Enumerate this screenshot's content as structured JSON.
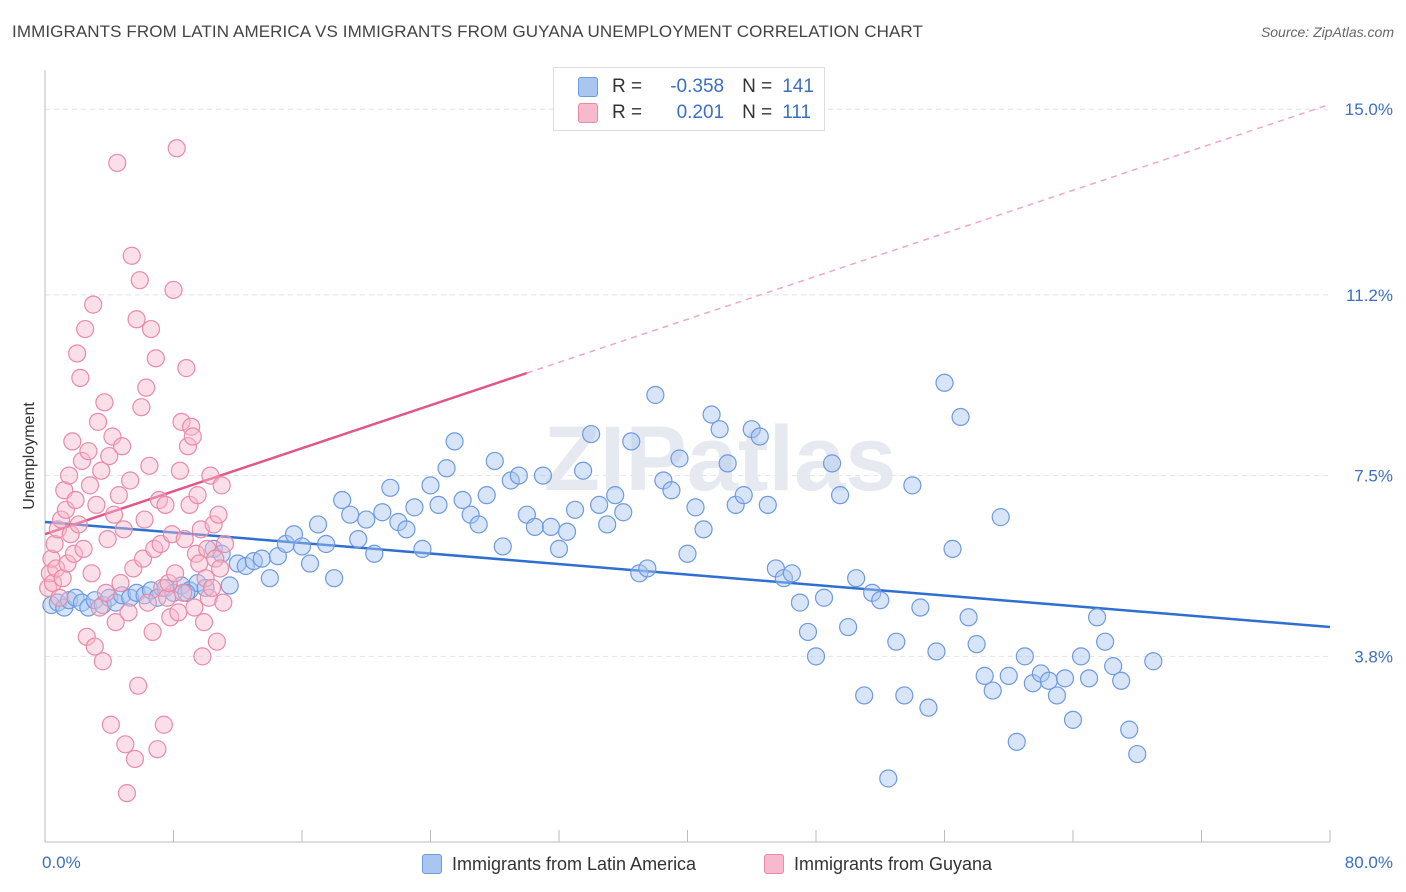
{
  "title": "IMMIGRANTS FROM LATIN AMERICA VS IMMIGRANTS FROM GUYANA UNEMPLOYMENT CORRELATION CHART",
  "source": "Source: ZipAtlas.com",
  "watermark": "ZIPatlas",
  "legend": {
    "rows": [
      {
        "r_label": "R =",
        "r_value": "-0.358",
        "n_label": "N =",
        "n_value": "141",
        "color": "#a9c6f0",
        "border": "#6d9ae0"
      },
      {
        "r_label": "R =",
        "r_value": "0.201",
        "n_label": "N =",
        "n_value": "111",
        "color": "#f7b9cc",
        "border": "#e98aa8"
      }
    ]
  },
  "bottom_legend": {
    "items": [
      {
        "label": "Immigrants from Latin America",
        "color": "#a9c6f0",
        "border": "#6d9ae0"
      },
      {
        "label": "Immigrants from Guyana",
        "color": "#f7b9cc",
        "border": "#e98aa8"
      }
    ]
  },
  "chart_data": {
    "type": "scatter",
    "xlabel": "",
    "ylabel": "Unemployment",
    "xlim": [
      0,
      80
    ],
    "ylim": [
      0,
      15.7
    ],
    "x_tick_labels": [
      "0.0%",
      "80.0%"
    ],
    "y_ticks": [
      3.8,
      7.5,
      11.2,
      15.0
    ],
    "y_tick_labels": [
      "3.8%",
      "7.5%",
      "11.2%",
      "15.0%"
    ],
    "grid": true,
    "legend_position": "top-center",
    "series": [
      {
        "name": "Immigrants from Latin America",
        "color": "#6d9ae0",
        "fill": "#a9c6f0",
        "trend": {
          "x": [
            0,
            80
          ],
          "y": [
            6.55,
            4.4
          ]
        },
        "points": [
          [
            0.4,
            4.85
          ],
          [
            0.8,
            4.9
          ],
          [
            1.2,
            4.8
          ],
          [
            1.5,
            4.95
          ],
          [
            1.9,
            5.0
          ],
          [
            2.3,
            4.9
          ],
          [
            2.7,
            4.8
          ],
          [
            3.1,
            4.95
          ],
          [
            3.6,
            4.85
          ],
          [
            4.0,
            5.0
          ],
          [
            4.4,
            4.9
          ],
          [
            4.8,
            5.05
          ],
          [
            5.3,
            5.0
          ],
          [
            5.7,
            5.1
          ],
          [
            6.2,
            5.05
          ],
          [
            6.6,
            5.15
          ],
          [
            7.0,
            5.0
          ],
          [
            7.5,
            5.2
          ],
          [
            8.0,
            5.1
          ],
          [
            8.5,
            5.25
          ],
          [
            9.0,
            5.15
          ],
          [
            9.5,
            5.3
          ],
          [
            10.0,
            5.2
          ],
          [
            10.5,
            6.0
          ],
          [
            11.0,
            5.9
          ],
          [
            11.5,
            5.25
          ],
          [
            12.0,
            5.7
          ],
          [
            12.5,
            5.65
          ],
          [
            13.0,
            5.75
          ],
          [
            13.5,
            5.8
          ],
          [
            14.0,
            5.4
          ],
          [
            14.5,
            5.85
          ],
          [
            15.0,
            6.1
          ],
          [
            15.5,
            6.3
          ],
          [
            16.0,
            6.05
          ],
          [
            16.5,
            5.7
          ],
          [
            17.0,
            6.5
          ],
          [
            17.5,
            6.1
          ],
          [
            18.0,
            5.4
          ],
          [
            18.5,
            7.0
          ],
          [
            19.0,
            6.7
          ],
          [
            19.5,
            6.2
          ],
          [
            20.0,
            6.6
          ],
          [
            20.5,
            5.9
          ],
          [
            21.0,
            6.75
          ],
          [
            21.5,
            7.25
          ],
          [
            22.0,
            6.55
          ],
          [
            22.5,
            6.4
          ],
          [
            23.0,
            6.85
          ],
          [
            23.5,
            6.0
          ],
          [
            24.0,
            7.3
          ],
          [
            24.5,
            6.9
          ],
          [
            25.0,
            7.65
          ],
          [
            25.5,
            8.2
          ],
          [
            26.0,
            7.0
          ],
          [
            26.5,
            6.7
          ],
          [
            27.0,
            6.5
          ],
          [
            27.5,
            7.1
          ],
          [
            28.0,
            7.8
          ],
          [
            28.5,
            6.05
          ],
          [
            29.0,
            7.4
          ],
          [
            29.5,
            7.5
          ],
          [
            30.0,
            6.7
          ],
          [
            30.5,
            6.45
          ],
          [
            31.0,
            7.5
          ],
          [
            31.5,
            6.45
          ],
          [
            32.0,
            6.0
          ],
          [
            32.5,
            6.35
          ],
          [
            33.0,
            6.8
          ],
          [
            33.5,
            7.6
          ],
          [
            34.0,
            8.35
          ],
          [
            34.5,
            6.9
          ],
          [
            35.0,
            6.5
          ],
          [
            35.5,
            7.1
          ],
          [
            36.0,
            6.75
          ],
          [
            36.5,
            8.2
          ],
          [
            37.0,
            5.5
          ],
          [
            37.5,
            5.6
          ],
          [
            38.0,
            9.15
          ],
          [
            38.5,
            7.4
          ],
          [
            39.0,
            7.2
          ],
          [
            39.5,
            7.85
          ],
          [
            40.0,
            5.9
          ],
          [
            40.5,
            6.85
          ],
          [
            41.0,
            6.4
          ],
          [
            41.5,
            8.75
          ],
          [
            42.0,
            8.45
          ],
          [
            42.5,
            7.75
          ],
          [
            43.0,
            6.9
          ],
          [
            43.5,
            7.1
          ],
          [
            44.0,
            8.45
          ],
          [
            44.5,
            8.3
          ],
          [
            45.0,
            6.9
          ],
          [
            45.5,
            5.6
          ],
          [
            46.0,
            5.4
          ],
          [
            46.5,
            5.5
          ],
          [
            47.0,
            4.9
          ],
          [
            47.5,
            4.3
          ],
          [
            48.0,
            3.8
          ],
          [
            48.5,
            5.0
          ],
          [
            49.0,
            7.75
          ],
          [
            49.5,
            7.1
          ],
          [
            50.0,
            4.4
          ],
          [
            50.5,
            5.4
          ],
          [
            51.0,
            3.0
          ],
          [
            51.5,
            5.1
          ],
          [
            52.0,
            4.95
          ],
          [
            52.5,
            1.3
          ],
          [
            53.0,
            4.1
          ],
          [
            53.5,
            3.0
          ],
          [
            54.0,
            7.3
          ],
          [
            54.5,
            4.8
          ],
          [
            55.0,
            2.75
          ],
          [
            55.5,
            3.9
          ],
          [
            56.0,
            9.4
          ],
          [
            56.5,
            6.0
          ],
          [
            57.0,
            8.7
          ],
          [
            57.5,
            4.6
          ],
          [
            58.0,
            4.05
          ],
          [
            58.5,
            3.4
          ],
          [
            59.0,
            3.1
          ],
          [
            59.5,
            6.65
          ],
          [
            60.0,
            3.4
          ],
          [
            60.5,
            2.05
          ],
          [
            61.0,
            3.8
          ],
          [
            61.5,
            3.25
          ],
          [
            62.0,
            3.45
          ],
          [
            62.5,
            3.3
          ],
          [
            63.0,
            3.0
          ],
          [
            63.5,
            3.35
          ],
          [
            64.0,
            2.5
          ],
          [
            64.5,
            3.8
          ],
          [
            65.0,
            3.35
          ],
          [
            65.5,
            4.6
          ],
          [
            66.0,
            4.1
          ],
          [
            66.5,
            3.6
          ],
          [
            67.0,
            3.3
          ],
          [
            67.5,
            2.3
          ],
          [
            68.0,
            1.8
          ],
          [
            69.0,
            3.7
          ],
          [
            8.8,
            5.1
          ]
        ]
      },
      {
        "name": "Immigrants from Guyana",
        "color": "#e98aa8",
        "fill": "#f7b9cc",
        "trend": {
          "x": [
            0,
            30
          ],
          "y": [
            6.3,
            9.6
          ]
        },
        "points": [
          [
            0.2,
            5.2
          ],
          [
            0.3,
            5.5
          ],
          [
            0.4,
            5.8
          ],
          [
            0.5,
            5.3
          ],
          [
            0.6,
            6.1
          ],
          [
            0.7,
            5.6
          ],
          [
            0.8,
            6.4
          ],
          [
            0.9,
            5.0
          ],
          [
            1.0,
            6.6
          ],
          [
            1.1,
            5.4
          ],
          [
            1.2,
            7.2
          ],
          [
            1.3,
            6.8
          ],
          [
            1.4,
            5.7
          ],
          [
            1.5,
            7.5
          ],
          [
            1.6,
            6.3
          ],
          [
            1.7,
            8.2
          ],
          [
            1.8,
            5.9
          ],
          [
            1.9,
            7.0
          ],
          [
            2.0,
            10.0
          ],
          [
            2.1,
            6.5
          ],
          [
            2.2,
            9.5
          ],
          [
            2.3,
            7.8
          ],
          [
            2.4,
            6.0
          ],
          [
            2.5,
            10.5
          ],
          [
            2.6,
            4.2
          ],
          [
            2.7,
            8.0
          ],
          [
            2.8,
            7.3
          ],
          [
            2.9,
            5.5
          ],
          [
            3.0,
            11.0
          ],
          [
            3.1,
            4.0
          ],
          [
            3.2,
            6.9
          ],
          [
            3.3,
            8.6
          ],
          [
            3.4,
            4.8
          ],
          [
            3.5,
            7.6
          ],
          [
            3.6,
            3.7
          ],
          [
            3.7,
            9.0
          ],
          [
            3.8,
            5.1
          ],
          [
            3.9,
            6.2
          ],
          [
            4.0,
            7.9
          ],
          [
            4.1,
            2.4
          ],
          [
            4.2,
            8.3
          ],
          [
            4.3,
            6.7
          ],
          [
            4.4,
            4.5
          ],
          [
            4.5,
            13.9
          ],
          [
            4.6,
            7.1
          ],
          [
            4.7,
            5.3
          ],
          [
            4.8,
            8.1
          ],
          [
            4.9,
            6.4
          ],
          [
            5.0,
            2.0
          ],
          [
            5.1,
            1.0
          ],
          [
            5.2,
            4.7
          ],
          [
            5.3,
            7.4
          ],
          [
            5.4,
            12.0
          ],
          [
            5.5,
            5.6
          ],
          [
            5.6,
            1.7
          ],
          [
            5.7,
            10.7
          ],
          [
            5.8,
            3.2
          ],
          [
            5.9,
            11.5
          ],
          [
            6.0,
            8.9
          ],
          [
            6.1,
            5.8
          ],
          [
            6.2,
            6.6
          ],
          [
            6.3,
            9.3
          ],
          [
            6.4,
            4.9
          ],
          [
            6.5,
            7.7
          ],
          [
            6.6,
            10.5
          ],
          [
            6.7,
            4.3
          ],
          [
            6.8,
            6.0
          ],
          [
            6.9,
            9.9
          ],
          [
            7.0,
            1.9
          ],
          [
            7.1,
            7.0
          ],
          [
            7.2,
            6.1
          ],
          [
            7.3,
            5.2
          ],
          [
            7.4,
            2.4
          ],
          [
            7.5,
            6.9
          ],
          [
            7.6,
            5.0
          ],
          [
            7.7,
            5.3
          ],
          [
            7.8,
            4.6
          ],
          [
            7.9,
            6.3
          ],
          [
            8.0,
            11.3
          ],
          [
            8.1,
            5.5
          ],
          [
            8.2,
            14.2
          ],
          [
            8.3,
            4.7
          ],
          [
            8.4,
            7.6
          ],
          [
            8.5,
            8.6
          ],
          [
            8.6,
            5.1
          ],
          [
            8.7,
            6.2
          ],
          [
            8.8,
            9.7
          ],
          [
            8.9,
            8.1
          ],
          [
            9.0,
            6.9
          ],
          [
            9.1,
            8.5
          ],
          [
            9.2,
            8.3
          ],
          [
            9.3,
            4.8
          ],
          [
            9.4,
            5.9
          ],
          [
            9.5,
            7.1
          ],
          [
            9.6,
            5.7
          ],
          [
            9.7,
            6.4
          ],
          [
            9.8,
            3.8
          ],
          [
            9.9,
            4.5
          ],
          [
            10.0,
            5.4
          ],
          [
            10.1,
            6.0
          ],
          [
            10.2,
            5.0
          ],
          [
            10.3,
            7.5
          ],
          [
            10.4,
            5.2
          ],
          [
            10.5,
            6.5
          ],
          [
            10.6,
            5.8
          ],
          [
            10.7,
            4.1
          ],
          [
            10.8,
            6.7
          ],
          [
            10.9,
            5.6
          ],
          [
            11.0,
            7.3
          ],
          [
            11.1,
            4.9
          ],
          [
            11.2,
            6.1
          ]
        ]
      }
    ]
  }
}
